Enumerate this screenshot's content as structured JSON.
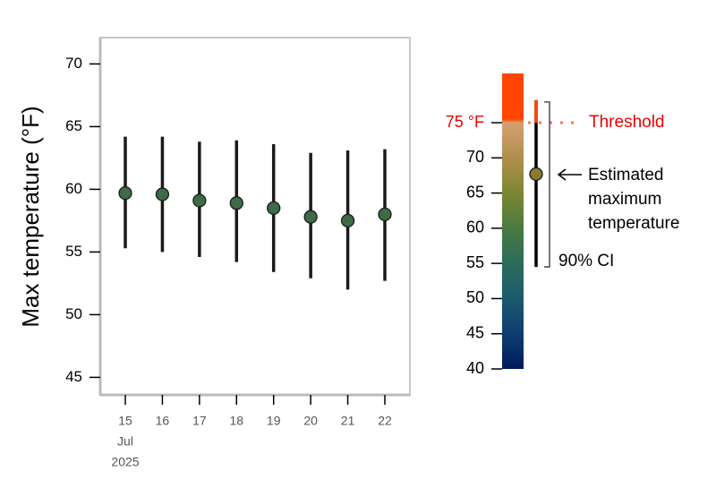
{
  "chart_data": {
    "type": "errorbar",
    "y_label": "Max temperature (°F)",
    "categories": [
      "15",
      "16",
      "17",
      "18",
      "19",
      "20",
      "21",
      "22"
    ],
    "month_label": "Jul",
    "year_label": "2025",
    "values": [
      59.7,
      59.6,
      59.1,
      58.9,
      58.5,
      57.8,
      57.5,
      58.0
    ],
    "lower": [
      55.3,
      55.0,
      54.6,
      54.2,
      53.4,
      52.9,
      52.0,
      52.7
    ],
    "upper": [
      64.2,
      64.2,
      63.8,
      63.9,
      63.6,
      62.9,
      63.1,
      63.2
    ],
    "color": "#3d6b45",
    "ylim": [
      43.6,
      72.1
    ],
    "yticks": [
      45,
      50,
      55,
      60,
      65,
      70
    ],
    "legend": {
      "lim": [
        40,
        82
      ],
      "ticks": [
        40,
        45,
        50,
        55,
        60,
        65,
        70,
        {
          "value": 75,
          "label": "75 °F"
        }
      ],
      "threshold_label": "Threshold",
      "stops": [
        {
          "value": 40,
          "color": "#001a5c"
        },
        {
          "value": 45,
          "color": "#0f3c72"
        },
        {
          "value": 50,
          "color": "#1a5a6e"
        },
        {
          "value": 55,
          "color": "#2c6c5a"
        },
        {
          "value": 60,
          "color": "#4a7a42"
        },
        {
          "value": 65,
          "color": "#7c8732"
        },
        {
          "value": 70,
          "color": "#b08f4c"
        },
        {
          "value": 75,
          "color": "#d4a070"
        },
        {
          "value": 75.5,
          "color": "#ff4500"
        },
        {
          "value": 82,
          "color": "#ff4500"
        }
      ],
      "example_value": 67.7,
      "example_lower": 54.5,
      "example_upper": 78.2,
      "example_color": "#8a7a2a",
      "estimate_label": [
        "Estimated",
        "maximum",
        "temperature"
      ],
      "ci_label": "90% CI"
    }
  }
}
